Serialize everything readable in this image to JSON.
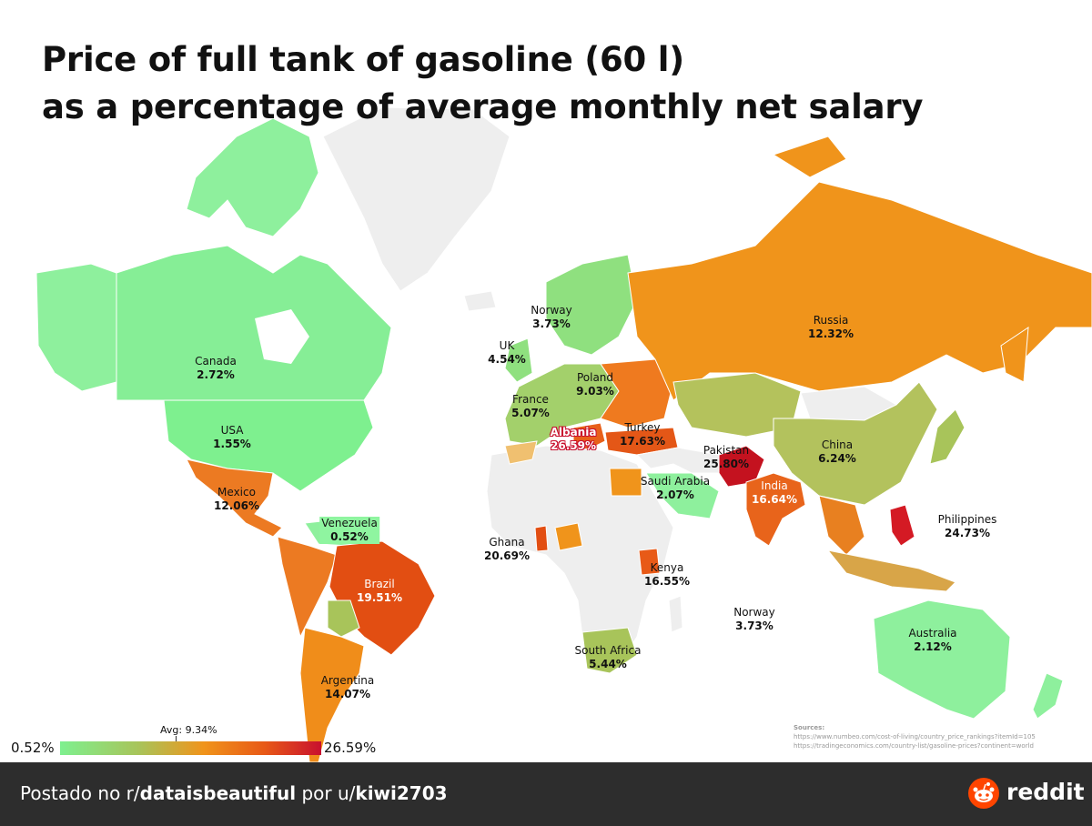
{
  "title": {
    "line1": "Price of full tank of gasoline (60 l)",
    "line2": "as a percentage of average monthly net salary"
  },
  "colors": {
    "ocean": "#ffffff",
    "no_data": "#eeeeee",
    "low": "#7ef08f",
    "mid_low": "#a8c45a",
    "mid": "#f0941b",
    "mid_high": "#e85a17",
    "high": "#c8102e"
  },
  "countries": [
    {
      "name": "Canada",
      "value": "2.72%"
    },
    {
      "name": "USA",
      "value": "1.55%"
    },
    {
      "name": "Mexico",
      "value": "12.06%"
    },
    {
      "name": "Venezuela",
      "value": "0.52%"
    },
    {
      "name": "Brazil",
      "value": "19.51%"
    },
    {
      "name": "Argentina",
      "value": "14.07%"
    },
    {
      "name": "Norway",
      "value": "3.73%"
    },
    {
      "name": "UK",
      "value": "4.54%"
    },
    {
      "name": "France",
      "value": "5.07%"
    },
    {
      "name": "Poland",
      "value": "9.03%"
    },
    {
      "name": "Albania",
      "value": "26.59%"
    },
    {
      "name": "Turkey",
      "value": "17.63%"
    },
    {
      "name": "Russia",
      "value": "12.32%"
    },
    {
      "name": "Pakistan",
      "value": "25.80%"
    },
    {
      "name": "India",
      "value": "16.64%"
    },
    {
      "name": "China",
      "value": "6.24%"
    },
    {
      "name": "Saudi Arabia",
      "value": "2.07%"
    },
    {
      "name": "Ghana",
      "value": "20.69%"
    },
    {
      "name": "Kenya",
      "value": "16.55%"
    },
    {
      "name": "Philippines",
      "value": "24.73%"
    },
    {
      "name": "Norway",
      "value": "3.73%"
    },
    {
      "name": "South Africa",
      "value": "5.44%"
    },
    {
      "name": "Australia",
      "value": "2.12%"
    }
  ],
  "legend": {
    "min": "0.52%",
    "max": "26.59%",
    "avg": "Avg: 9.34%"
  },
  "sources": {
    "heading": "Sources:",
    "lines": [
      "https://www.numbeo.com/cost-of-living/country_price_rankings?itemId=105",
      "https://tradingeconomics.com/country-list/gasoline-prices?continent=world"
    ]
  },
  "footer": {
    "prefix": "Postado no r/",
    "subreddit": "dataisbeautiful",
    "middle": " por u/",
    "user": "kiwi2703",
    "brand": "reddit"
  }
}
